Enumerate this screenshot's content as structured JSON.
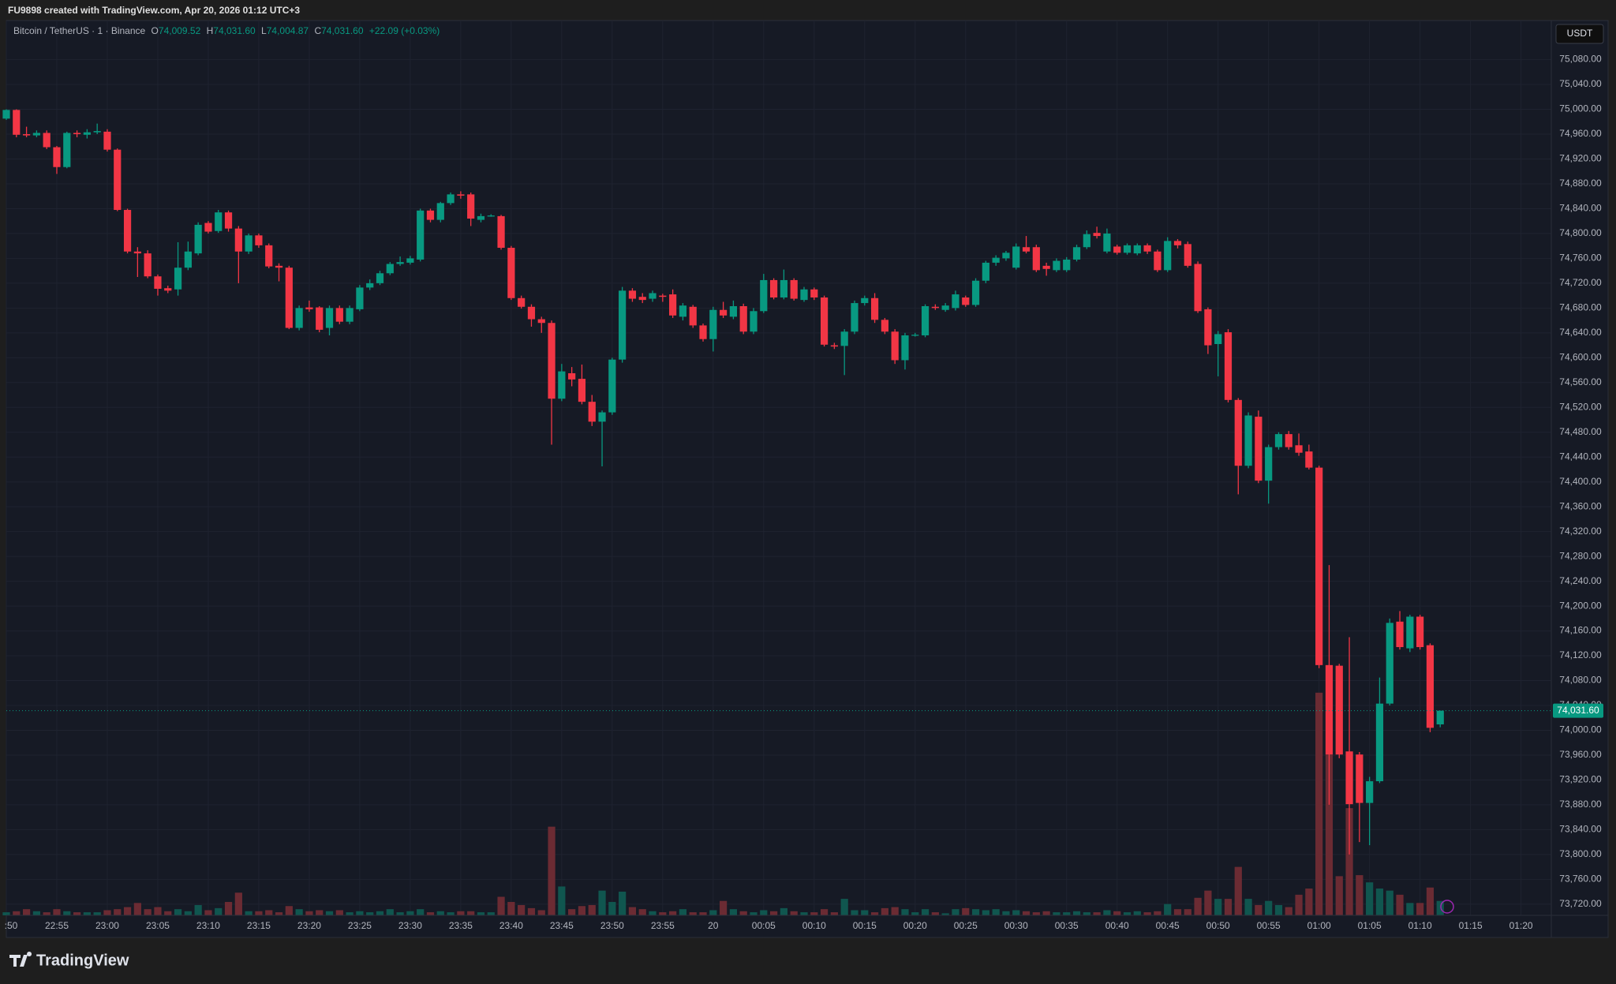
{
  "header": "FU9898 created with TradingView.com, Apr 20, 2026 01:12 UTC+3",
  "footer": "TradingView",
  "chart_data": {
    "type": "candlestick",
    "legend": {
      "symbol": "Bitcoin / TetherUS · 1 · Binance",
      "o": "O",
      "open": "74,009.52",
      "h": "H",
      "high": "74,031.60",
      "l": "L",
      "low": "74,004.87",
      "c": "C",
      "close": "74,031.60",
      "change": "+22.09 (+0.03%)"
    },
    "currency": "USDT",
    "up_color": "#089981",
    "down_color": "#f23645",
    "up_volume_color": "#10564f",
    "down_volume_color": "#6b2b33",
    "grid": true,
    "last_price": {
      "value": 74031.6,
      "label": "74,031.60"
    },
    "x": [
      "22:50",
      "22:51",
      "22:52",
      "22:53",
      "22:54",
      "22:55",
      "22:56",
      "22:57",
      "22:58",
      "22:59",
      "23:00",
      "23:01",
      "23:02",
      "23:03",
      "23:04",
      "23:05",
      "23:06",
      "23:07",
      "23:08",
      "23:09",
      "23:10",
      "23:11",
      "23:12",
      "23:13",
      "23:14",
      "23:15",
      "23:16",
      "23:17",
      "23:18",
      "23:19",
      "23:20",
      "23:21",
      "23:22",
      "23:23",
      "23:24",
      "23:25",
      "23:26",
      "23:27",
      "23:28",
      "23:29",
      "23:30",
      "23:31",
      "23:32",
      "23:33",
      "23:34",
      "23:35",
      "23:36",
      "23:37",
      "23:38",
      "23:39",
      "23:40",
      "23:41",
      "23:42",
      "23:43",
      "23:44",
      "23:45",
      "23:46",
      "23:47",
      "23:48",
      "23:49",
      "23:50",
      "23:51",
      "23:52",
      "23:53",
      "23:54",
      "23:55",
      "23:56",
      "23:57",
      "23:58",
      "23:59",
      "00:00",
      "00:01",
      "00:02",
      "00:03",
      "00:04",
      "00:05",
      "00:06",
      "00:07",
      "00:08",
      "00:09",
      "00:10",
      "00:11",
      "00:12",
      "00:13",
      "00:14",
      "00:15",
      "00:16",
      "00:17",
      "00:18",
      "00:19",
      "00:20",
      "00:21",
      "00:22",
      "00:23",
      "00:24",
      "00:25",
      "00:26",
      "00:27",
      "00:28",
      "00:29",
      "00:30",
      "00:31",
      "00:32",
      "00:33",
      "00:34",
      "00:35",
      "00:36",
      "00:37",
      "00:38",
      "00:39",
      "00:40",
      "00:41",
      "00:42",
      "00:43",
      "00:44",
      "00:45",
      "00:46",
      "00:47",
      "00:48",
      "00:49",
      "00:50",
      "00:51",
      "00:52",
      "00:53",
      "00:54",
      "00:55",
      "00:56",
      "00:57",
      "00:58",
      "00:59",
      "01:00",
      "01:01",
      "01:02",
      "01:03",
      "01:04",
      "01:05",
      "01:06",
      "01:07",
      "01:08",
      "01:09",
      "01:10",
      "01:11",
      "01:12"
    ],
    "open": [
      74985,
      74999,
      74960,
      74958,
      74962,
      74939,
      74907,
      74962,
      74959,
      74963,
      74964,
      74935,
      74838,
      74771,
      74768,
      74731,
      74712,
      74710,
      74745,
      74768,
      74817,
      74804,
      74834,
      74808,
      74771,
      74797,
      74781,
      74748,
      74745,
      74648,
      74681,
      74681,
      74648,
      74680,
      74658,
      74678,
      74713,
      74720,
      74736,
      74751,
      74753,
      74758,
      74837,
      74822,
      74849,
      74863,
      74863,
      74822,
      74829,
      74828,
      74777,
      74696,
      74682,
      74662,
      74656,
      74534,
      74575,
      74566,
      74529,
      74497,
      74512,
      74597,
      74708,
      74698,
      74695,
      74700,
      74702,
      74666,
      74682,
      74652,
      74630,
      74677,
      74666,
      74683,
      74642,
      74675,
      74725,
      74697,
      74725,
      74693,
      74710,
      74697,
      74620,
      74619,
      74642,
      74688,
      74696,
      74661,
      74642,
      74596,
      74637,
      74636,
      74682,
      74677,
      74680,
      74697,
      74685,
      74724,
      74753,
      74760,
      74745,
      74778,
      74778,
      74748,
      74741,
      74741,
      74758,
      74778,
      74801,
      74771,
      74779,
      74769,
      74768,
      74781,
      74771,
      74741,
      74788,
      74783,
      74751,
      74678,
      74622,
      74641,
      74532,
      74426,
      74505,
      74402,
      74456,
      74477,
      74459,
      74449,
      74423,
      74105,
      74104,
      73966,
      73961,
      73883,
      73918,
      74043,
      74175,
      74132,
      74183,
      74137,
      74009.52
    ],
    "high": [
      75000,
      75000,
      74972,
      74966,
      74966,
      74941,
      74964,
      74966,
      74968,
      74977,
      74968,
      74937,
      74840,
      74778,
      74773,
      74734,
      74716,
      74786,
      74787,
      74818,
      74820,
      74838,
      74837,
      74812,
      74800,
      74800,
      74784,
      74752,
      74748,
      74684,
      74692,
      74683,
      74684,
      74684,
      74684,
      74717,
      74726,
      74740,
      74754,
      74763,
      74764,
      74840,
      74840,
      74851,
      74866,
      74868,
      74866,
      74832,
      74831,
      74830,
      74780,
      74700,
      74686,
      74666,
      74660,
      74590,
      74585,
      74589,
      74540,
      74515,
      74600,
      74714,
      74712,
      74704,
      74708,
      74703,
      74710,
      74688,
      74685,
      74655,
      74682,
      74690,
      74692,
      74687,
      74680,
      74735,
      74728,
      74742,
      74728,
      74714,
      74713,
      74700,
      74624,
      74646,
      74692,
      74700,
      74704,
      74664,
      74646,
      74640,
      74640,
      74686,
      74686,
      74688,
      74708,
      74700,
      74728,
      74756,
      74765,
      74772,
      74784,
      74796,
      74782,
      74753,
      74760,
      74762,
      74782,
      74805,
      74811,
      74808,
      74782,
      74784,
      74784,
      74784,
      74774,
      74794,
      74791,
      74787,
      74755,
      74681,
      74643,
      74646,
      74535,
      74512,
      74515,
      74460,
      74480,
      74482,
      74478,
      74460,
      74426,
      74266,
      74107,
      74150,
      73965,
      73925,
      74085,
      74180,
      74192,
      74186,
      74186,
      74140,
      74031.6
    ],
    "low": [
      74983,
      74955,
      74955,
      74955,
      74936,
      74896,
      74905,
      74955,
      74953,
      74960,
      74932,
      74836,
      74768,
      74730,
      74728,
      74700,
      74704,
      74700,
      74741,
      74765,
      74800,
      74801,
      74803,
      74720,
      74767,
      74777,
      74744,
      74723,
      74646,
      74644,
      74674,
      74641,
      74636,
      74654,
      74654,
      74675,
      74709,
      74717,
      74733,
      74748,
      74750,
      74755,
      74818,
      74818,
      74846,
      74856,
      74812,
      74818,
      74827,
      74774,
      74693,
      74679,
      74650,
      74640,
      74460,
      74530,
      74554,
      74525,
      74490,
      74425,
      74508,
      74592,
      74690,
      74688,
      74690,
      74690,
      74664,
      74660,
      74648,
      74626,
      74610,
      74664,
      74662,
      74638,
      74638,
      74672,
      74694,
      74694,
      74692,
      74690,
      74693,
      74618,
      74614,
      74572,
      74638,
      74684,
      74656,
      74638,
      74590,
      74581,
      74634,
      74633,
      74677,
      74674,
      74676,
      74682,
      74682,
      74720,
      74748,
      74756,
      74742,
      74768,
      74738,
      74732,
      74738,
      74738,
      74755,
      74775,
      74792,
      74768,
      74766,
      74766,
      74765,
      74767,
      74738,
      74738,
      74776,
      74745,
      74672,
      74606,
      74570,
      74528,
      74380,
      74422,
      74398,
      74365,
      74452,
      74452,
      74442,
      74420,
      74100,
      73880,
      73955,
      73800,
      73820,
      73815,
      73915,
      74040,
      74130,
      74126,
      74130,
      73997,
      74004.87
    ],
    "close": [
      74999,
      74959,
      74958,
      74962,
      74939,
      74907,
      74962,
      74960,
      74963,
      74965,
      74935,
      74838,
      74771,
      74768,
      74731,
      74711,
      74708,
      74745,
      74771,
      74814,
      74803,
      74834,
      74808,
      74771,
      74797,
      74781,
      74747,
      74745,
      74648,
      74680,
      74678,
      74645,
      74680,
      74658,
      74680,
      74713,
      74720,
      74736,
      74751,
      74754,
      74760,
      74837,
      74822,
      74849,
      74863,
      74861,
      74824,
      74828,
      74829,
      74777,
      74696,
      74682,
      74662,
      74656,
      74534,
      74578,
      74565,
      74529,
      74497,
      74512,
      74597,
      74708,
      74695,
      74693,
      74704,
      74698,
      74668,
      74684,
      74652,
      74630,
      74677,
      74668,
      74683,
      74642,
      74675,
      74725,
      74697,
      74725,
      74695,
      74710,
      74697,
      74621,
      74618,
      74642,
      74688,
      74696,
      74661,
      74642,
      74596,
      74636,
      74637,
      74683,
      74680,
      74684,
      74702,
      74685,
      74724,
      74753,
      74761,
      74769,
      74779,
      74771,
      74741,
      74743,
      74756,
      74758,
      74778,
      74799,
      74796,
      74800,
      74769,
      74781,
      74781,
      74771,
      74741,
      74788,
      74781,
      74748,
      74675,
      74620,
      74638,
      74532,
      74426,
      74507,
      74402,
      74456,
      74477,
      74456,
      74447,
      74423,
      74105,
      73961,
      73961,
      73881,
      73883,
      73918,
      74043,
      74173,
      74134,
      74183,
      74134,
      74004,
      74031.6
    ],
    "volume": [
      3,
      4,
      6,
      4,
      3,
      6,
      4,
      3,
      3,
      3,
      5,
      6,
      8,
      12,
      6,
      8,
      4,
      6,
      4,
      10,
      5,
      7,
      13,
      22,
      4,
      4,
      5,
      3,
      9,
      6,
      4,
      5,
      4,
      5,
      3,
      4,
      3,
      4,
      6,
      3,
      4,
      6,
      3,
      4,
      3,
      4,
      4,
      3,
      3,
      18,
      13,
      10,
      7,
      5,
      86,
      28,
      6,
      9,
      10,
      24,
      13,
      23,
      8,
      6,
      4,
      3,
      4,
      6,
      3,
      3,
      5,
      14,
      6,
      4,
      3,
      5,
      4,
      7,
      4,
      3,
      3,
      6,
      3,
      16,
      5,
      5,
      3,
      7,
      8,
      6,
      3,
      6,
      3,
      2,
      6,
      7,
      6,
      5,
      6,
      4,
      5,
      4,
      3,
      4,
      3,
      3,
      4,
      3,
      3,
      5,
      4,
      3,
      4,
      3,
      4,
      11,
      6,
      6,
      17,
      24,
      16,
      16,
      47,
      16,
      10,
      14,
      10,
      8,
      20,
      26,
      216,
      156,
      38,
      104,
      39,
      32,
      26,
      24,
      20,
      12,
      12,
      27,
      14
    ],
    "volume_lim": [
      0,
      868
    ],
    "xlim": [
      "22:50",
      "01:23"
    ],
    "xticks": [
      {
        "value": "22:50",
        "label": ":50"
      },
      "22:55",
      "23:00",
      "23:05",
      "23:10",
      "23:15",
      "23:20",
      "23:25",
      "23:30",
      "23:35",
      "23:40",
      "23:45",
      "23:50",
      "23:55",
      {
        "value": "00:00",
        "label": "20"
      },
      "00:05",
      "00:10",
      "00:15",
      "00:20",
      "00:25",
      "00:30",
      "00:35",
      "00:40",
      "00:45",
      "00:50",
      "00:55",
      "01:00",
      "01:05",
      "01:10",
      "01:15",
      "01:20"
    ],
    "ylim": [
      73702,
      75143
    ],
    "yticks": [
      {
        "value": 73720,
        "label": "73,720.00"
      },
      {
        "value": 73760,
        "label": "73,760.00"
      },
      {
        "value": 73800,
        "label": "73,800.00"
      },
      {
        "value": 73840,
        "label": "73,840.00"
      },
      {
        "value": 73880,
        "label": "73,880.00"
      },
      {
        "value": 73920,
        "label": "73,920.00"
      },
      {
        "value": 73960,
        "label": "73,960.00"
      },
      {
        "value": 74000,
        "label": "74,000.00"
      },
      {
        "value": 74040,
        "label": "74,040.00"
      },
      {
        "value": 74080,
        "label": "74,080.00"
      },
      {
        "value": 74120,
        "label": "74,120.00"
      },
      {
        "value": 74160,
        "label": "74,160.00"
      },
      {
        "value": 74200,
        "label": "74,200.00"
      },
      {
        "value": 74240,
        "label": "74,240.00"
      },
      {
        "value": 74280,
        "label": "74,280.00"
      },
      {
        "value": 74320,
        "label": "74,320.00"
      },
      {
        "value": 74360,
        "label": "74,360.00"
      },
      {
        "value": 74400,
        "label": "74,400.00"
      },
      {
        "value": 74440,
        "label": "74,440.00"
      },
      {
        "value": 74480,
        "label": "74,480.00"
      },
      {
        "value": 74520,
        "label": "74,520.00"
      },
      {
        "value": 74560,
        "label": "74,560.00"
      },
      {
        "value": 74600,
        "label": "74,600.00"
      },
      {
        "value": 74640,
        "label": "74,640.00"
      },
      {
        "value": 74680,
        "label": "74,680.00"
      },
      {
        "value": 74720,
        "label": "74,720.00"
      },
      {
        "value": 74760,
        "label": "74,760.00"
      },
      {
        "value": 74800,
        "label": "74,800.00"
      },
      {
        "value": 74840,
        "label": "74,840.00"
      },
      {
        "value": 74880,
        "label": "74,880.00"
      },
      {
        "value": 74920,
        "label": "74,920.00"
      },
      {
        "value": 74960,
        "label": "74,960.00"
      },
      {
        "value": 75000,
        "label": "75,000.00"
      },
      {
        "value": 75040,
        "label": "75,040.00"
      },
      {
        "value": 75080,
        "label": "75,080.00"
      }
    ]
  }
}
